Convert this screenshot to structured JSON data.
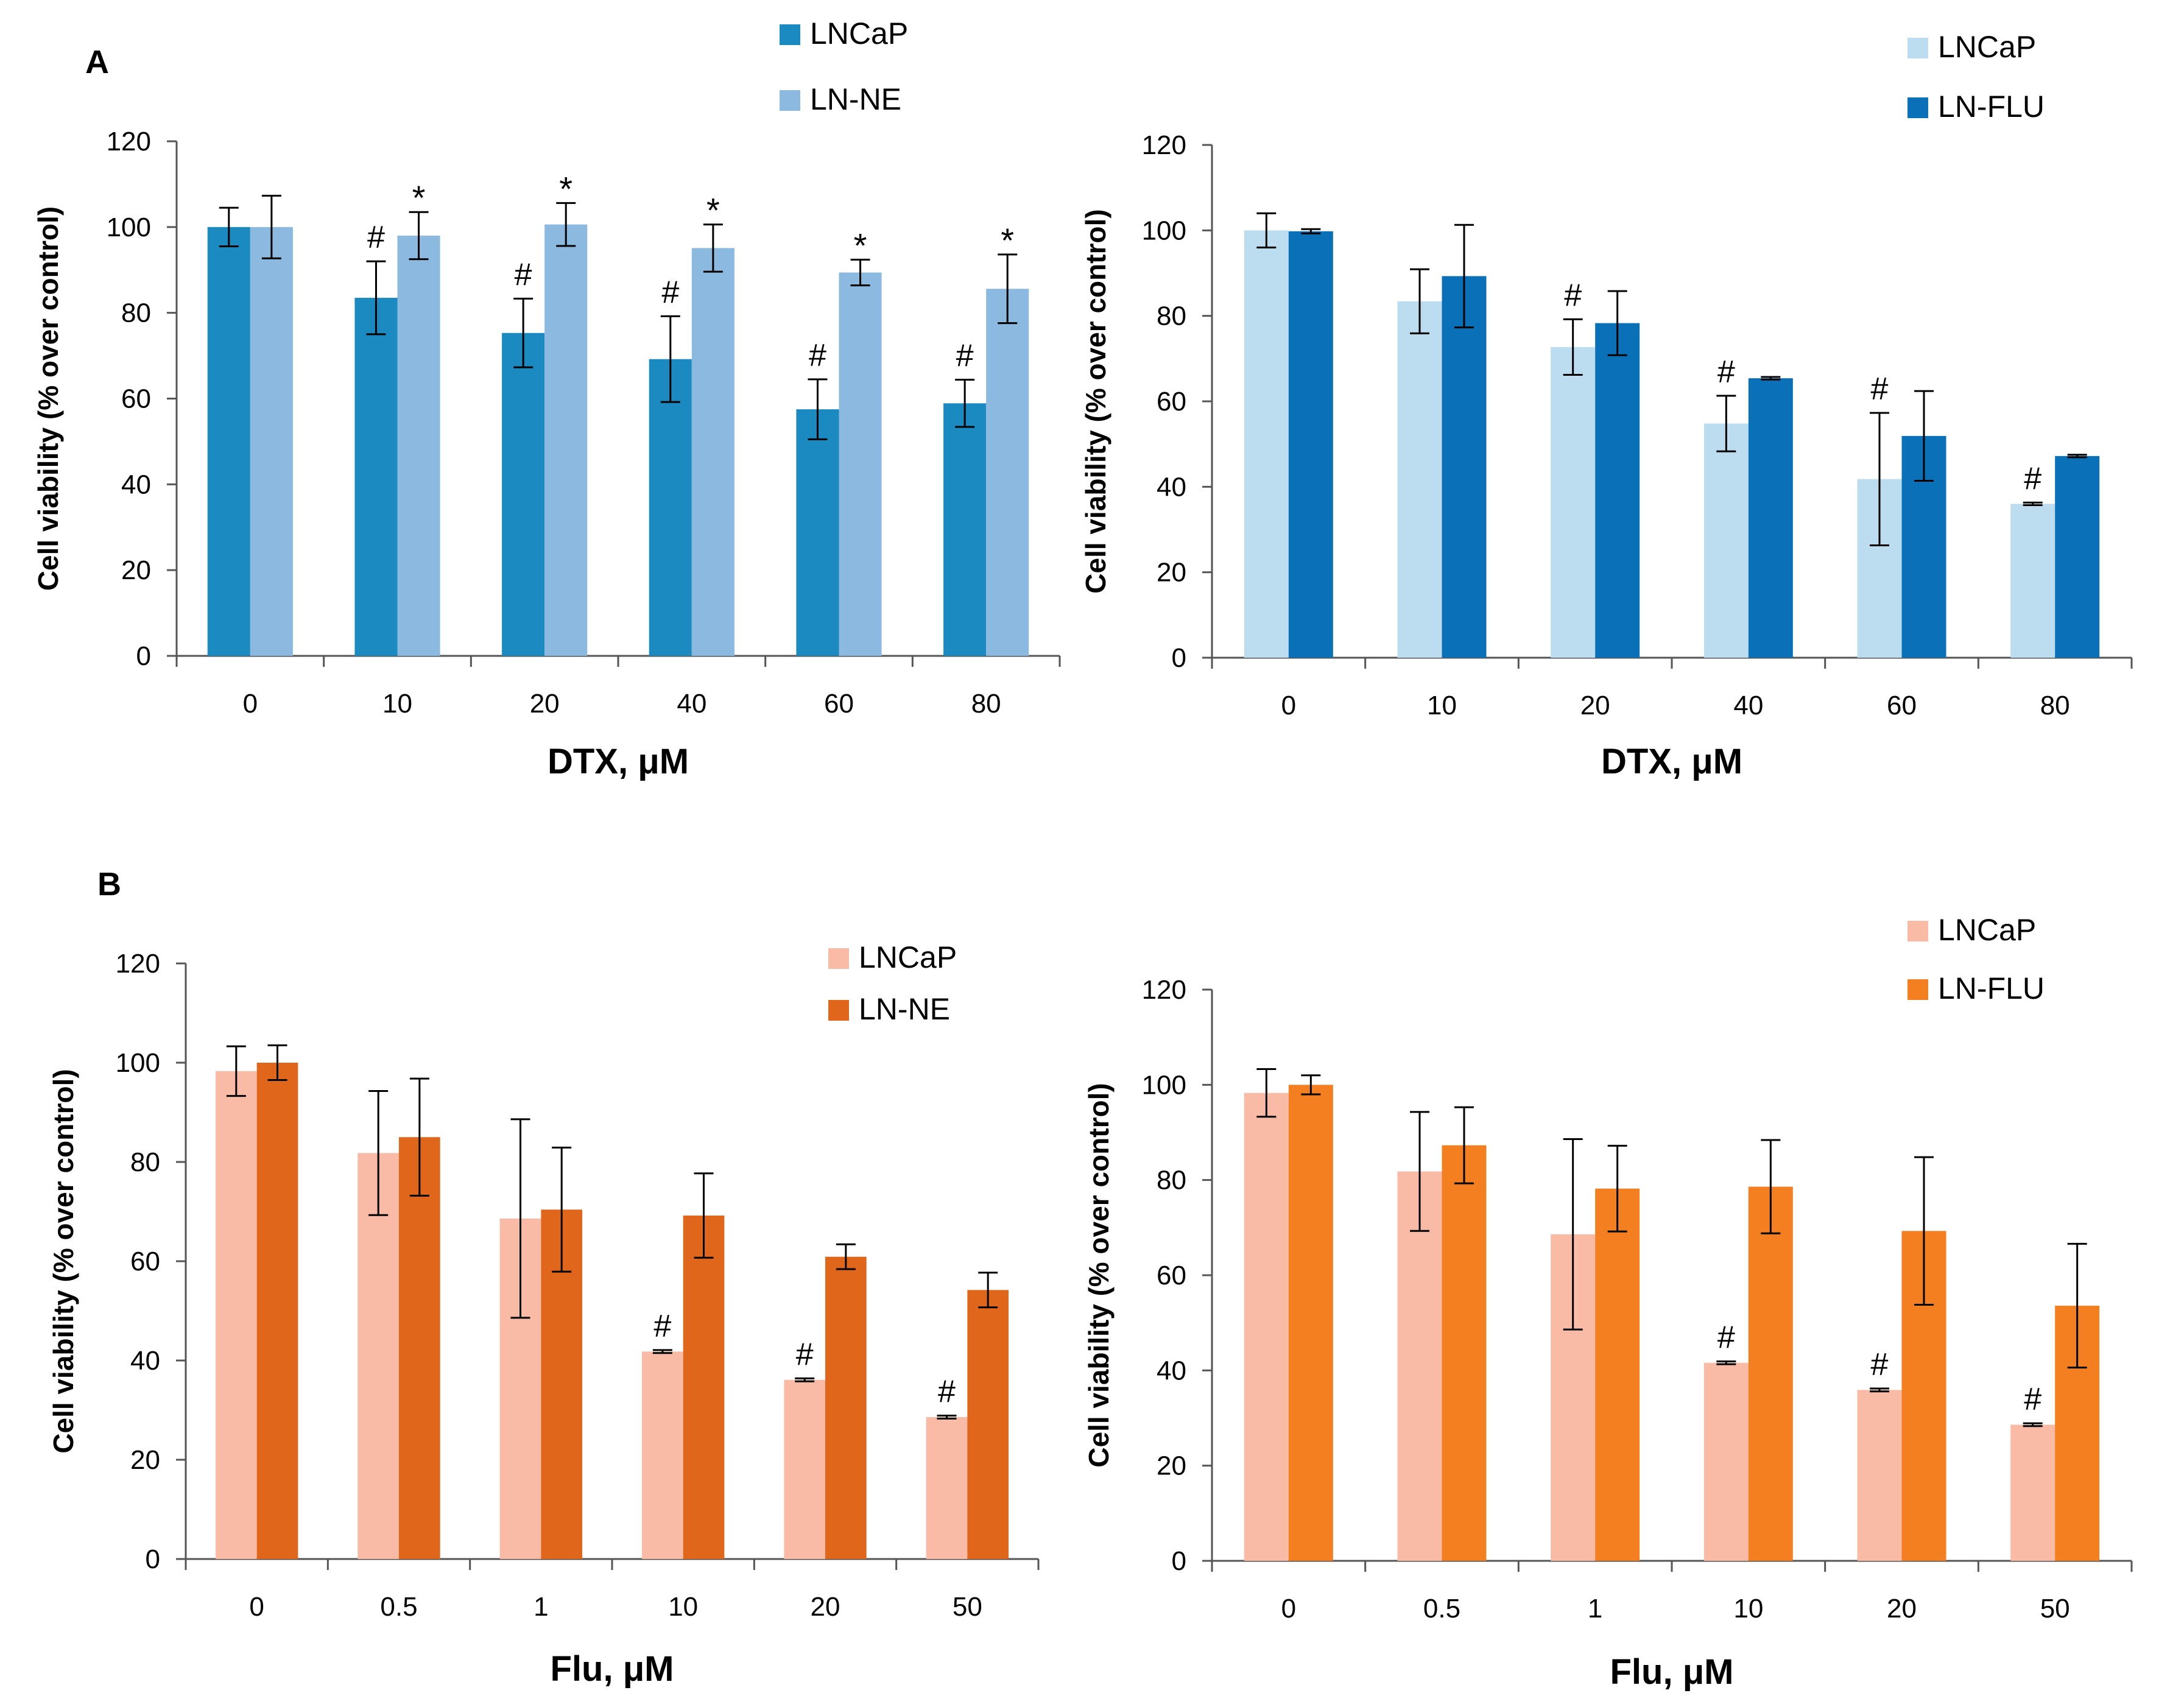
{
  "figure": {
    "panel_a_label": "A",
    "panel_b_label": "B"
  },
  "chart_data": [
    {
      "id": "a1",
      "type": "bar",
      "title": "",
      "xlabel": "DTX, μM",
      "ylabel": "Cell viability (% over control)",
      "categories": [
        "0",
        "10",
        "20",
        "40",
        "60",
        "80"
      ],
      "ylim": [
        0,
        120
      ],
      "yticks": [
        0,
        20,
        40,
        60,
        80,
        100,
        120
      ],
      "grid": false,
      "legend": "top-center",
      "series": [
        {
          "name": "LNCaP",
          "color": "#1a8ac0",
          "values": [
            100,
            83.5,
            75.3,
            69.2,
            57.5,
            58.9
          ],
          "errors": [
            4.5,
            8.5,
            8,
            10,
            7,
            5.5
          ]
        },
        {
          "name": "LN-NE",
          "color": "#8bb9e0",
          "values": [
            100,
            98,
            100.6,
            95.1,
            89.4,
            85.6
          ],
          "errors": [
            7.3,
            5.5,
            5,
            5.5,
            3,
            8
          ]
        }
      ],
      "annotations": [
        {
          "series": 0,
          "category": 1,
          "text": "#"
        },
        {
          "series": 0,
          "category": 2,
          "text": "#"
        },
        {
          "series": 0,
          "category": 3,
          "text": "#"
        },
        {
          "series": 0,
          "category": 4,
          "text": "#"
        },
        {
          "series": 0,
          "category": 5,
          "text": "#"
        },
        {
          "series": 1,
          "category": 1,
          "text": "*"
        },
        {
          "series": 1,
          "category": 2,
          "text": "*"
        },
        {
          "series": 1,
          "category": 3,
          "text": "*"
        },
        {
          "series": 1,
          "category": 4,
          "text": "*"
        },
        {
          "series": 1,
          "category": 5,
          "text": "*"
        }
      ]
    },
    {
      "id": "a2",
      "type": "bar",
      "title": "",
      "xlabel": "DTX, μM",
      "ylabel": "Cell viability (% over control)",
      "categories": [
        "0",
        "10",
        "20",
        "40",
        "60",
        "80"
      ],
      "ylim": [
        0,
        120
      ],
      "yticks": [
        0,
        20,
        40,
        60,
        80,
        100,
        120
      ],
      "grid": false,
      "legend": "top-right",
      "series": [
        {
          "name": "LNCaP",
          "color": "#bcdcf0",
          "values": [
            100,
            83.4,
            72.7,
            54.8,
            41.8,
            36
          ],
          "errors": [
            4,
            7.5,
            6.5,
            6.5,
            15.5,
            0.3
          ]
        },
        {
          "name": "LN-FLU",
          "color": "#0a70b8",
          "values": [
            99.8,
            89.3,
            78.3,
            65.4,
            51.9,
            47.2
          ],
          "errors": [
            0.5,
            12,
            7.5,
            0.3,
            10.5,
            0.3
          ]
        }
      ],
      "annotations": [
        {
          "series": 0,
          "category": 2,
          "text": "#"
        },
        {
          "series": 0,
          "category": 3,
          "text": "#"
        },
        {
          "series": 0,
          "category": 4,
          "text": "#"
        },
        {
          "series": 0,
          "category": 5,
          "text": "#"
        }
      ]
    },
    {
      "id": "b1",
      "type": "bar",
      "title": "",
      "xlabel": "Flu, μM",
      "ylabel": "Cell viability (% over control)",
      "categories": [
        "0",
        "0.5",
        "1",
        "10",
        "20",
        "50"
      ],
      "ylim": [
        0,
        120
      ],
      "yticks": [
        0,
        20,
        40,
        60,
        80,
        100,
        120
      ],
      "grid": false,
      "legend": "top-right",
      "series": [
        {
          "name": "LNCaP",
          "color": "#f9bba6",
          "values": [
            98.3,
            81.8,
            68.6,
            41.8,
            36.1,
            28.6
          ],
          "errors": [
            5,
            12.5,
            20,
            0.3,
            0.3,
            0.3
          ]
        },
        {
          "name": "LN-NE",
          "color": "#e0661c",
          "values": [
            100,
            85,
            70.4,
            69.2,
            60.9,
            54.2
          ],
          "errors": [
            3.5,
            11.8,
            12.5,
            8.5,
            2.5,
            3.5
          ]
        }
      ],
      "annotations": [
        {
          "series": 0,
          "category": 3,
          "text": "#"
        },
        {
          "series": 0,
          "category": 4,
          "text": "#"
        },
        {
          "series": 0,
          "category": 5,
          "text": "#"
        }
      ]
    },
    {
      "id": "b2",
      "type": "bar",
      "title": "",
      "xlabel": "Flu, μM",
      "ylabel": "Cell viability (% over control)",
      "categories": [
        "0",
        "0.5",
        "1",
        "10",
        "20",
        "50"
      ],
      "ylim": [
        0,
        120
      ],
      "yticks": [
        0,
        20,
        40,
        60,
        80,
        100,
        120
      ],
      "grid": false,
      "legend": "top-right",
      "series": [
        {
          "name": "LNCaP",
          "color": "#f9bba6",
          "values": [
            98.3,
            81.8,
            68.6,
            41.6,
            35.9,
            28.6
          ],
          "errors": [
            5,
            12.5,
            20,
            0.3,
            0.3,
            0.3
          ]
        },
        {
          "name": "LN-FLU",
          "color": "#f47f20",
          "values": [
            100,
            87.3,
            78.2,
            78.6,
            69.3,
            53.6
          ],
          "errors": [
            2,
            8,
            9,
            9.8,
            15.5,
            13
          ]
        }
      ],
      "annotations": [
        {
          "series": 0,
          "category": 3,
          "text": "#"
        },
        {
          "series": 0,
          "category": 4,
          "text": "#"
        },
        {
          "series": 0,
          "category": 5,
          "text": "#"
        }
      ]
    }
  ]
}
